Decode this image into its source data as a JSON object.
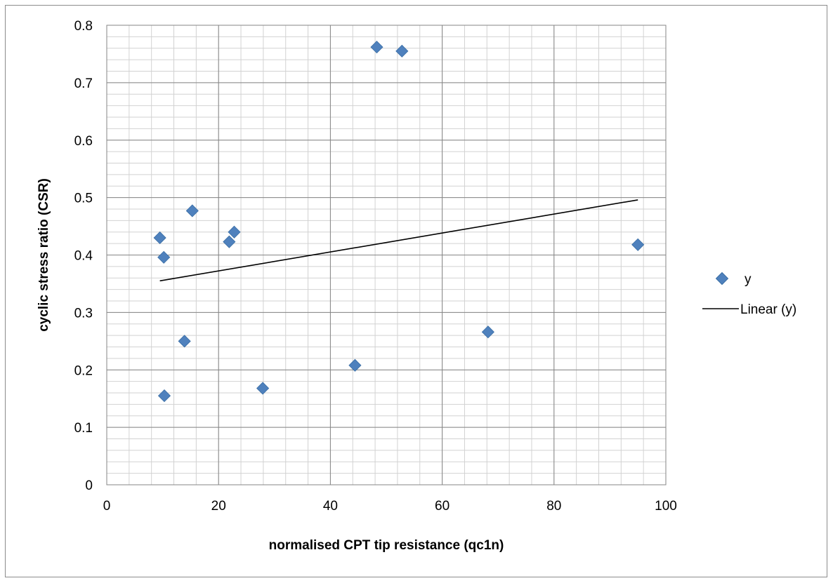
{
  "chart_data": {
    "type": "scatter",
    "title": "",
    "xlabel": "normalised CPT tip resistance (qc1n)",
    "ylabel": "cyclic stress ratio (CSR)",
    "xlim": [
      0,
      100
    ],
    "ylim": [
      0,
      0.8
    ],
    "x_major_step": 20,
    "y_major_step": 0.1,
    "x_minor_step": 4,
    "y_minor_step": 0.02,
    "x_ticks": [
      "0",
      "20",
      "40",
      "60",
      "80",
      "100"
    ],
    "y_ticks": [
      "0",
      "0.1",
      "0.2",
      "0.3",
      "0.4",
      "0.5",
      "0.6",
      "0.7",
      "0.8"
    ],
    "grid": true,
    "legend_position": "right",
    "series": [
      {
        "name": "y",
        "marker": "diamond",
        "color": "#4f81bd",
        "x": [
          9.5,
          10.2,
          10.3,
          13.9,
          15.3,
          21.9,
          22.8,
          27.9,
          44.4,
          48.3,
          52.8,
          68.2,
          95.0
        ],
        "y": [
          0.43,
          0.396,
          0.155,
          0.25,
          0.477,
          0.423,
          0.44,
          0.168,
          0.208,
          0.762,
          0.755,
          0.266,
          0.418
        ]
      }
    ],
    "trendline": {
      "name": "Linear (y)",
      "type": "linear",
      "color": "#000000",
      "x": [
        9.5,
        95.0
      ],
      "y": [
        0.355,
        0.496
      ]
    }
  }
}
